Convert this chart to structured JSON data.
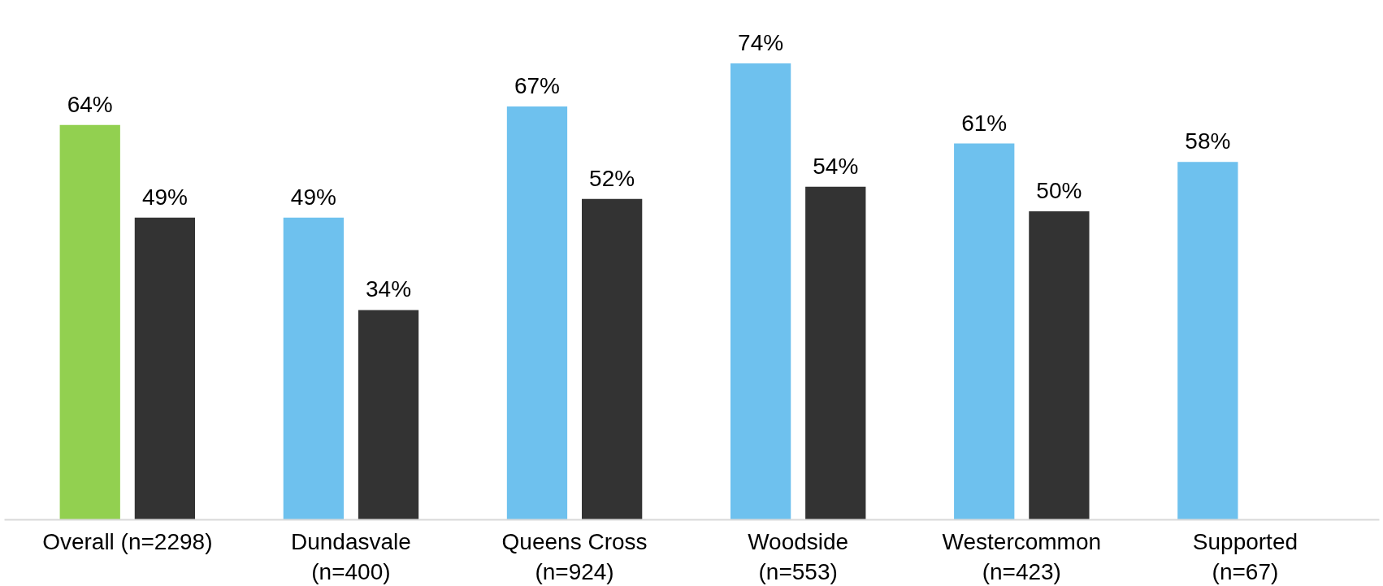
{
  "chart_data": {
    "type": "bar",
    "categories": [
      "Overall (n=2298)",
      "Dundasvale\n(n=400)",
      "Queens Cross\n(n=924)",
      "Woodside\n(n=553)",
      "Westercommon\n(n=423)",
      "Supported\n(n=67)"
    ],
    "series": [
      {
        "colors": [
          "#92d050",
          "#6ec1ee",
          "#6ec1ee",
          "#6ec1ee",
          "#6ec1ee",
          "#6ec1ee"
        ],
        "values": [
          64,
          49,
          67,
          74,
          61,
          58
        ],
        "value_labels": [
          "64%",
          "49%",
          "67%",
          "74%",
          "61%",
          "58%"
        ]
      },
      {
        "color": "#333333",
        "values": [
          49,
          34,
          52,
          54,
          50,
          null
        ],
        "value_labels": [
          "49%",
          "34%",
          "52%",
          "54%",
          "50%",
          null
        ]
      }
    ],
    "grid": false,
    "tick_labels": "x"
  }
}
